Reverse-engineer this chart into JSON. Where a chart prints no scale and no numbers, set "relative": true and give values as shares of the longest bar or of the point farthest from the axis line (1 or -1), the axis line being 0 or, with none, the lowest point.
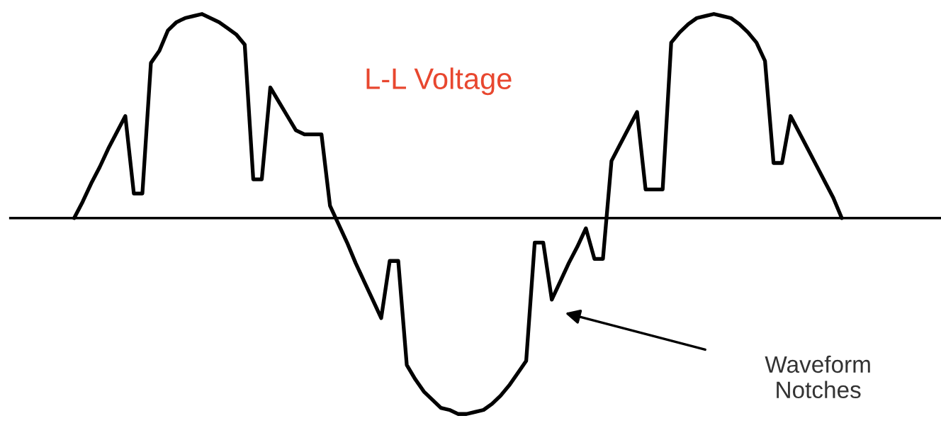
{
  "chart_data": {
    "type": "line",
    "title": "L-L Voltage",
    "relative": true,
    "legend": false,
    "marker": "none",
    "line_style": "solid",
    "annotations": [
      "Waveform\nNotches"
    ],
    "categories": [
      null,
      null,
      null,
      null,
      null,
      null,
      null,
      null,
      null,
      null,
      null,
      null,
      null,
      null,
      null,
      null,
      null,
      null,
      null,
      null,
      null,
      null,
      null,
      null,
      null,
      null,
      null,
      null,
      null,
      null,
      null,
      null,
      null,
      null,
      null,
      null,
      null,
      null,
      null,
      null,
      null,
      null,
      null,
      null,
      null,
      null,
      null,
      null,
      null,
      null,
      null,
      null,
      null,
      null,
      null,
      null,
      null,
      null,
      null,
      null,
      null,
      null,
      null,
      null,
      null,
      null,
      null,
      null,
      null,
      null,
      null,
      null,
      null,
      null,
      null,
      null,
      null,
      null,
      null,
      null,
      null,
      null,
      null,
      null,
      null,
      null,
      null,
      null,
      null,
      null,
      null
    ],
    "series": [
      {
        "color": "#000000",
        "values": [
          0,
          0.08,
          0.17,
          0.25,
          0.34,
          0.42,
          0.5,
          0.12,
          0.12,
          0.76,
          0.82,
          0.92,
          0.96,
          0.98,
          0.99,
          1.0,
          0.98,
          0.96,
          0.93,
          0.9,
          0.85,
          0.19,
          0.19,
          0.64,
          0.57,
          0.5,
          0.43,
          0.41,
          0.41,
          0.41,
          0.06,
          -0.03,
          -0.12,
          -0.22,
          -0.31,
          -0.4,
          -0.49,
          -0.21,
          -0.21,
          -0.72,
          -0.79,
          -0.85,
          -0.89,
          -0.93,
          -0.94,
          -0.96,
          -0.96,
          -0.95,
          -0.94,
          -0.91,
          -0.87,
          -0.82,
          -0.76,
          -0.7,
          -0.12,
          -0.12,
          -0.4,
          -0.31,
          -0.22,
          -0.14,
          -0.05,
          -0.2,
          -0.2,
          0.28,
          0.36,
          0.44,
          0.52,
          0.14,
          0.14,
          0.14,
          0.86,
          0.91,
          0.95,
          0.98,
          0.99,
          1.0,
          0.99,
          0.98,
          0.95,
          0.91,
          0.86,
          0.77,
          0.27,
          0.27,
          0.5,
          0.42,
          0.34,
          0.26,
          0.18,
          0.1,
          0
        ]
      }
    ]
  }
}
